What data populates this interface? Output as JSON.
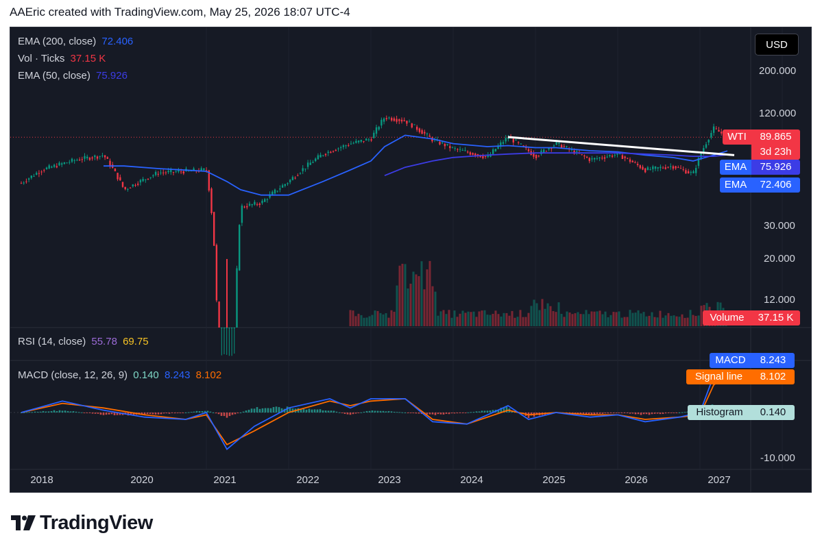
{
  "header": {
    "title": "AAEric created with TradingView.com, May 25, 2026 18:07 UTC-4"
  },
  "legend": {
    "ema200": {
      "label": "EMA (200, close)",
      "value": "72.406"
    },
    "vol": {
      "label": "Vol · Ticks",
      "value": "37.15 K"
    },
    "ema50": {
      "label": "EMA (50, close)",
      "value": "75.926"
    },
    "rsi": {
      "label": "RSI (14, close)",
      "value1": "55.78",
      "value2": "69.75"
    },
    "macd": {
      "label": "MACD (close, 12, 26, 9)",
      "hist": "0.140",
      "macd": "8.243",
      "signal": "8.102"
    }
  },
  "currency_button": "USD",
  "price_tags": {
    "wti": {
      "name": "WTI",
      "value": "89.865",
      "countdown": "3d 23h"
    },
    "ema50": {
      "name": "EMA",
      "value": "75.926"
    },
    "ema200": {
      "name": "EMA",
      "value": "72.406"
    },
    "volume": {
      "name": "Volume",
      "value": "37.15 K"
    },
    "macd": {
      "name": "MACD",
      "value": "8.243"
    },
    "signal": {
      "name": "Signal line",
      "value": "8.102"
    },
    "histogram": {
      "name": "Histogram",
      "value": "0.140"
    }
  },
  "price_axis_labels": [
    "200.000",
    "120.000",
    "30.000",
    "20.000",
    "12.000"
  ],
  "macd_axis_labels": [
    "-10.000"
  ],
  "time_axis_labels": [
    "2018",
    "2020",
    "2021",
    "2022",
    "2023",
    "2024",
    "2025",
    "2026",
    "2027"
  ],
  "brand": {
    "name": "TradingView"
  },
  "colors": {
    "background": "#161a25",
    "up": "#089981",
    "down": "#f23645",
    "ema50": "#2962ff",
    "ema200": "#3c3ce6",
    "macd": "#2962ff",
    "signal": "#ff6d00",
    "trendline": "#ffffff",
    "wti_tag": "#f23645"
  },
  "chart_data": [
    {
      "type": "line",
      "title": "WTI",
      "scale": "log",
      "x": [
        "2017-10",
        "2018-01",
        "2018-06",
        "2018-10",
        "2019-01",
        "2019-06",
        "2020-01",
        "2020-04",
        "2020-06",
        "2020-09",
        "2021-01",
        "2021-06",
        "2021-10",
        "2022-01",
        "2022-03",
        "2022-06",
        "2022-10",
        "2023-01",
        "2023-06",
        "2023-09",
        "2024-01",
        "2024-04",
        "2024-09",
        "2025-01",
        "2025-05",
        "2025-09",
        "2025-12",
        "2026-03",
        "2026-05"
      ],
      "series": [
        {
          "name": "WTI",
          "values": [
            51,
            60,
            68,
            72,
            47,
            58,
            60,
            -37,
            38,
            40,
            52,
            73,
            83,
            88,
            115,
            110,
            87,
            78,
            70,
            90,
            71,
            83,
            68,
            73,
            60,
            63,
            57,
            100,
            89.865
          ]
        },
        {
          "name": "EMA (50, close)",
          "values": [
            null,
            null,
            null,
            63,
            63,
            61,
            59,
            52,
            47,
            44,
            44,
            52,
            60,
            67,
            80,
            92,
            88,
            83,
            80,
            81,
            79,
            79,
            76,
            75,
            72,
            70,
            67,
            72,
            75.926
          ]
        },
        {
          "name": "EMA (200, close)",
          "values": [
            null,
            null,
            null,
            null,
            null,
            null,
            null,
            null,
            null,
            null,
            null,
            null,
            null,
            null,
            56,
            62,
            67,
            70,
            72,
            73,
            74,
            74,
            74,
            74,
            73,
            72,
            71,
            71,
            72.406
          ]
        }
      ],
      "ylim": [
        10,
        250
      ],
      "yticks": [
        200,
        120,
        30,
        20,
        12
      ],
      "trendline": {
        "from": {
          "x": "2023-09",
          "y": 90
        },
        "to": {
          "x": "2026-06",
          "y": 72
        }
      },
      "volume": {
        "name": "Vol · Ticks",
        "last": 37.15,
        "unit": "K"
      },
      "legend_position": "top-left",
      "grid": false
    },
    {
      "type": "line",
      "title": "MACD (close, 12, 26, 9)",
      "x": [
        "2017-10",
        "2018-04",
        "2018-10",
        "2019-04",
        "2019-10",
        "2020-01",
        "2020-04",
        "2020-08",
        "2021-01",
        "2021-07",
        "2021-10",
        "2022-01",
        "2022-06",
        "2022-10",
        "2023-03",
        "2023-09",
        "2023-12",
        "2024-04",
        "2024-09",
        "2025-01",
        "2025-05",
        "2025-10",
        "2026-01",
        "2026-03",
        "2026-05"
      ],
      "series": [
        {
          "name": "MACD",
          "values": [
            0,
            2.5,
            0.5,
            -1,
            -1.5,
            0,
            -8,
            -3,
            1,
            3,
            1,
            3,
            3,
            -2,
            -2.5,
            1.5,
            -1.5,
            0,
            -1,
            -0.5,
            -2,
            -1,
            0,
            8,
            8.243
          ]
        },
        {
          "name": "Signal line",
          "values": [
            0,
            2,
            1,
            -0.5,
            -1.5,
            -0.5,
            -7,
            -4,
            0,
            2.5,
            1.5,
            2.5,
            3,
            -1.5,
            -2.5,
            0.5,
            -0.5,
            0,
            -0.5,
            -0.5,
            -1.5,
            -1,
            -0.5,
            6,
            8.102
          ]
        },
        {
          "name": "Histogram",
          "values": [
            0,
            0.5,
            -0.5,
            -0.5,
            0,
            0.5,
            -1,
            1,
            1,
            0.5,
            -0.5,
            0.5,
            0,
            -0.5,
            0,
            1,
            -1,
            0,
            -0.5,
            0,
            -0.5,
            0,
            0.5,
            2,
            0.14
          ]
        }
      ],
      "yticks": [
        -10
      ]
    }
  ]
}
